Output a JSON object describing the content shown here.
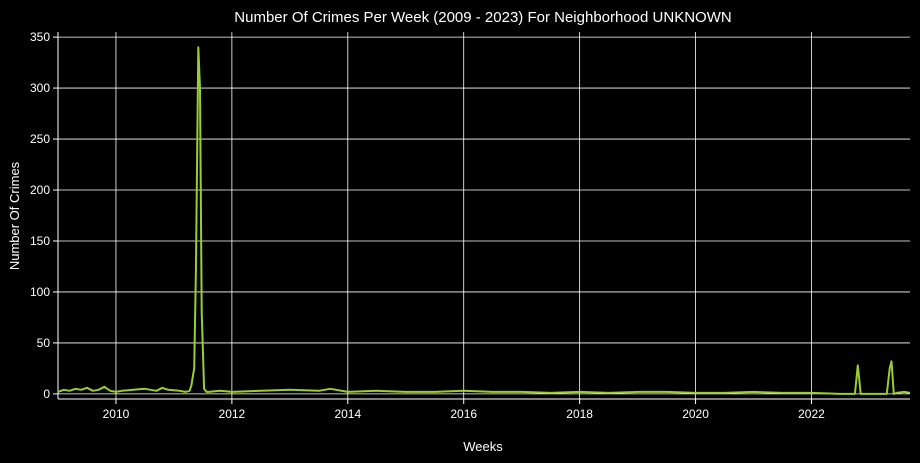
{
  "chart_data": {
    "type": "line",
    "title": "Number Of Crimes Per Week (2009 - 2023) For Neighborhood UNKNOWN",
    "xlabel": "Weeks",
    "ylabel": "Number Of Crimes",
    "xlim": [
      2009.0,
      2023.7
    ],
    "ylim": [
      -5,
      355
    ],
    "x_ticks": [
      2010,
      2012,
      2014,
      2016,
      2018,
      2020,
      2022
    ],
    "x_tick_labels": [
      "2010",
      "2012",
      "2014",
      "2016",
      "2018",
      "2020",
      "2022"
    ],
    "y_ticks": [
      0,
      50,
      100,
      150,
      200,
      250,
      300,
      350
    ],
    "y_tick_labels": [
      "0",
      "50",
      "100",
      "150",
      "200",
      "250",
      "300",
      "350"
    ],
    "grid": true,
    "line_color": "#9acd32",
    "series": [
      {
        "x": [
          2009.0,
          2009.1,
          2009.2,
          2009.3,
          2009.4,
          2009.5,
          2009.6,
          2009.7,
          2009.8,
          2009.9,
          2010.0,
          2010.1,
          2010.3,
          2010.5,
          2010.7,
          2010.8,
          2010.9,
          2011.1,
          2011.2,
          2011.27,
          2011.3,
          2011.35,
          2011.38,
          2011.42,
          2011.45,
          2011.48,
          2011.52,
          2011.56,
          2011.6,
          2011.8,
          2012.0,
          2012.5,
          2013.0,
          2013.5,
          2013.7,
          2014.0,
          2014.5,
          2015.0,
          2015.5,
          2016.0,
          2016.5,
          2017.0,
          2017.5,
          2018.0,
          2018.5,
          2019.0,
          2019.5,
          2020.0,
          2020.5,
          2021.0,
          2021.5,
          2022.0,
          2022.5,
          2022.75,
          2022.8,
          2022.85,
          2023.0,
          2023.3,
          2023.35,
          2023.38,
          2023.42,
          2023.47,
          2023.6,
          2023.7
        ],
        "y": [
          2,
          4,
          3,
          5,
          4,
          6,
          3,
          4,
          7,
          3,
          2,
          3,
          4,
          5,
          3,
          6,
          4,
          3,
          2,
          3,
          8,
          25,
          120,
          340,
          300,
          80,
          5,
          2,
          2,
          3,
          2,
          3,
          4,
          3,
          5,
          2,
          3,
          2,
          2,
          3,
          2,
          2,
          1,
          2,
          1,
          2,
          2,
          1,
          1,
          2,
          1,
          1,
          0,
          0,
          28,
          0,
          0,
          0,
          25,
          32,
          0,
          1,
          2,
          1
        ]
      }
    ]
  }
}
